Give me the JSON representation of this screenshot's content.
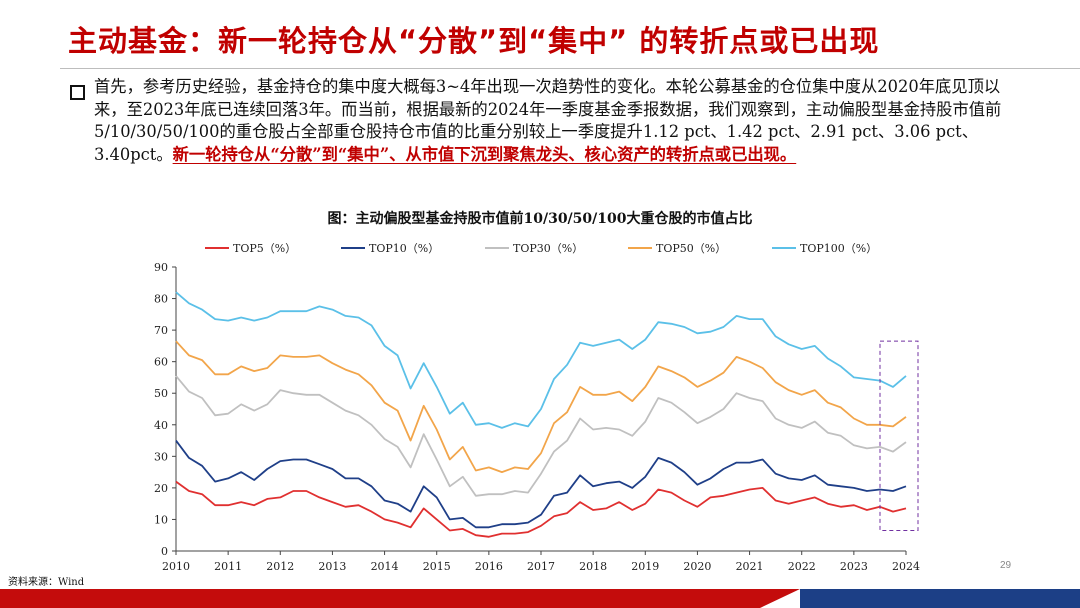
{
  "title": "主动基金：新一轮持仓从“分散”到“集中” 的转折点或已出现",
  "paragraph": {
    "text": "首先，参考历史经验，基金持仓的集中度大概每3~4年出现一次趋势性的变化。本轮公募基金的仓位集中度从2020年底见顶以来，至2023年底已连续回落3年。而当前，根据最新的2024年一季度基金季报数据，我们观察到，主动偏股型基金持股市值前5/10/30/50/100的重仓股占全部重仓股持仓市值的比重分别较上一季度提升1.12 pct、1.42 pct、2.91 pct、3.06 pct、3.40pct。",
    "highlight": "新一轮持仓从“分散”到“集中”、从市值下沉到聚焦龙头、核心资产的转折点或已出现。"
  },
  "page_number": "29",
  "source": "资料来源：Wind",
  "colors": {
    "title": "#c00000",
    "highlight_box": "#7030a0"
  },
  "chart_data": {
    "type": "line",
    "title": "图：主动偏股型基金持股市值前10/30/50/100大重仓股的市值占比",
    "ylim": [
      0,
      90
    ],
    "yticks": [
      0,
      10,
      20,
      30,
      40,
      50,
      60,
      70,
      80,
      90
    ],
    "xticks": [
      "2010",
      "2011",
      "2012",
      "2013",
      "2014",
      "2015",
      "2016",
      "2017",
      "2018",
      "2019",
      "2020",
      "2021",
      "2022",
      "2023",
      "2024"
    ],
    "legend_position": "top",
    "grid": false,
    "x_start": 2010.0,
    "x_step": 0.25,
    "series": [
      {
        "name": "TOP5（%）",
        "color": "#e03030",
        "values": [
          22,
          19,
          18,
          14.5,
          14.5,
          15.5,
          14.5,
          16.5,
          17,
          19,
          19,
          17,
          15.5,
          14,
          14.5,
          12.5,
          10,
          9,
          7.5,
          13.5,
          10,
          6.5,
          7,
          5,
          4.5,
          5.5,
          5.5,
          6,
          8,
          11,
          12,
          15.5,
          13,
          13.5,
          15.5,
          13,
          15,
          19.5,
          18.5,
          16,
          14,
          17,
          17.5,
          18.5,
          19.5,
          20,
          16,
          15,
          16,
          17,
          15,
          14,
          14.5,
          13,
          14,
          12.5,
          13.5
        ]
      },
      {
        "name": "TOP10（%）",
        "color": "#1f3f88",
        "values": [
          35,
          29.5,
          27,
          22,
          23,
          25,
          22.5,
          26,
          28.5,
          29,
          29,
          27.5,
          26,
          23,
          23,
          20.5,
          16,
          15,
          12.5,
          20.5,
          17,
          10,
          10.5,
          7.5,
          7.5,
          8.5,
          8.5,
          9,
          11.5,
          17.5,
          18.5,
          24,
          20.5,
          21.5,
          22,
          20,
          23.5,
          29.5,
          28,
          25,
          21,
          23,
          26,
          28,
          28,
          29,
          24.5,
          23,
          22.5,
          24,
          21,
          20.5,
          20,
          19,
          19.5,
          19,
          20.5
        ]
      },
      {
        "name": "TOP30（%）",
        "color": "#c0c0c0",
        "values": [
          55.5,
          50.5,
          48.5,
          43,
          43.5,
          46.5,
          44.5,
          46.5,
          51,
          50,
          49.5,
          49.5,
          47,
          44.5,
          43,
          40,
          35.5,
          33,
          26.5,
          37,
          29,
          20.5,
          23.5,
          17.5,
          18,
          18,
          19,
          18.5,
          24.5,
          31.5,
          35,
          42,
          38.5,
          39,
          38.5,
          36.5,
          41,
          48.5,
          47,
          44,
          40.5,
          42.5,
          45,
          50,
          48.5,
          47.5,
          42,
          40,
          39,
          41,
          37.5,
          36.5,
          33.5,
          32.5,
          33,
          31.5,
          34.5
        ]
      },
      {
        "name": "TOP50（%）",
        "color": "#f2a54a",
        "values": [
          66.5,
          62,
          60.5,
          56,
          56,
          58.5,
          57,
          58,
          62,
          61.5,
          61.5,
          62,
          59.5,
          57.5,
          56,
          52.5,
          47,
          44.5,
          35,
          46,
          38.5,
          29,
          33,
          25.5,
          26.5,
          25,
          26.5,
          26,
          31,
          40.5,
          44,
          52,
          49.5,
          49.5,
          50.5,
          47.5,
          52,
          58.5,
          57,
          55,
          52,
          54,
          56.5,
          61.5,
          60,
          58,
          53.5,
          51,
          49.5,
          51,
          47,
          45.5,
          42,
          40,
          40,
          39.5,
          42.5
        ]
      },
      {
        "name": "TOP100（%）",
        "color": "#5bc0e8",
        "values": [
          82,
          78.5,
          76.5,
          73.5,
          73,
          74,
          73,
          74,
          76,
          76,
          76,
          77.5,
          76.5,
          74.5,
          74,
          71.5,
          65,
          62,
          51.5,
          59.5,
          52,
          43.5,
          47,
          40,
          40.5,
          39,
          40.5,
          39.5,
          45,
          54.5,
          59,
          66,
          65,
          66,
          67,
          64,
          67,
          72.5,
          72,
          71,
          69,
          69.5,
          71,
          74.5,
          73.5,
          73.5,
          68,
          65.5,
          64,
          65,
          61,
          58.5,
          55,
          54.5,
          54,
          52,
          55.5
        ]
      }
    ]
  }
}
